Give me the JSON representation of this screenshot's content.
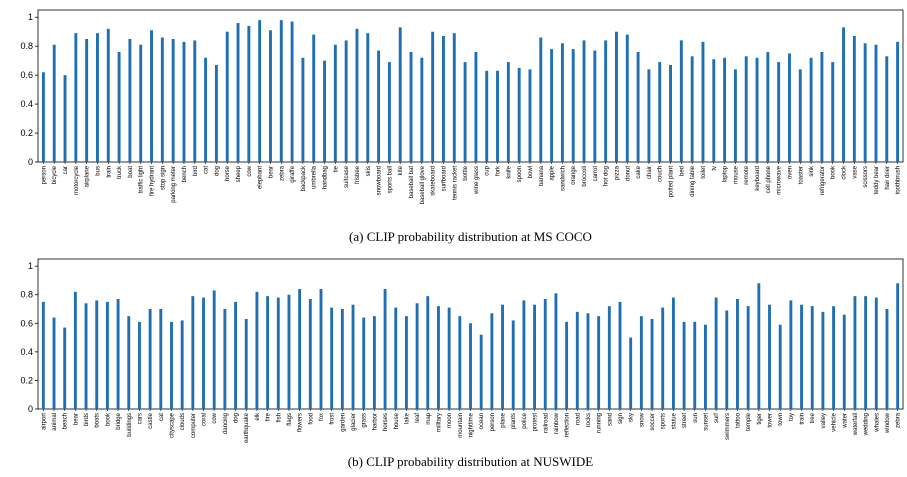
{
  "chart_data": [
    {
      "type": "bar",
      "caption": "(a) CLIP probability distribution at MS COCO",
      "ylim": [
        0,
        1.05
      ],
      "yticks": [
        "0",
        "0.2",
        "0.4",
        "0.6",
        "0.8",
        "1"
      ],
      "color": "#1f6fb2",
      "categories": [
        "person",
        "bicycle",
        "car",
        "motorcycle",
        "airplane",
        "bus",
        "train",
        "truck",
        "boat",
        "traffic light",
        "fire hydrant",
        "stop sign",
        "parking meter",
        "bench",
        "bird",
        "cat",
        "dog",
        "horse",
        "sheep",
        "cow",
        "elephant",
        "bear",
        "zebra",
        "giraffe",
        "backpack",
        "umbrella",
        "handbag",
        "tie",
        "suitcase",
        "frisbee",
        "skis",
        "snowboard",
        "sports ball",
        "kite",
        "baseball bat",
        "baseball glove",
        "skateboard",
        "surfboard",
        "tennis racket",
        "bottle",
        "wine glass",
        "cup",
        "fork",
        "knife",
        "spoon",
        "bowl",
        "banana",
        "apple",
        "sandwich",
        "orange",
        "broccoli",
        "carrot",
        "hot dog",
        "pizza",
        "donut",
        "cake",
        "chair",
        "couch",
        "potted plant",
        "bed",
        "dining table",
        "toilet",
        "tv",
        "laptop",
        "mouse",
        "remote",
        "keyboard",
        "cell phone",
        "microwave",
        "oven",
        "toaster",
        "sink",
        "refrigerator",
        "book",
        "clock",
        "vase",
        "scissors",
        "teddy bear",
        "hair drier",
        "toothbrush"
      ],
      "values": [
        0.62,
        0.81,
        0.6,
        0.89,
        0.85,
        0.89,
        0.92,
        0.76,
        0.85,
        0.81,
        0.91,
        0.86,
        0.85,
        0.83,
        0.84,
        0.72,
        0.67,
        0.9,
        0.96,
        0.94,
        0.98,
        0.91,
        0.98,
        0.97,
        0.72,
        0.88,
        0.7,
        0.81,
        0.84,
        0.92,
        0.89,
        0.77,
        0.69,
        0.93,
        0.76,
        0.72,
        0.9,
        0.87,
        0.89,
        0.69,
        0.76,
        0.63,
        0.63,
        0.69,
        0.65,
        0.64,
        0.86,
        0.78,
        0.82,
        0.78,
        0.84,
        0.77,
        0.84,
        0.9,
        0.88,
        0.76,
        0.64,
        0.69,
        0.67,
        0.84,
        0.73,
        0.83,
        0.71,
        0.72,
        0.64,
        0.73,
        0.72,
        0.76,
        0.69,
        0.75,
        0.64,
        0.72,
        0.76,
        0.69,
        0.93,
        0.87,
        0.82,
        0.81,
        0.73,
        0.83
      ]
    },
    {
      "type": "bar",
      "caption": "(b) CLIP probability distribution at NUSWIDE",
      "ylim": [
        0,
        1.05
      ],
      "yticks": [
        "0",
        "0.2",
        "0.4",
        "0.6",
        "0.8",
        "1"
      ],
      "color": "#1f6fb2",
      "categories": [
        "airport",
        "animal",
        "beach",
        "bear",
        "birds",
        "boats",
        "book",
        "bridge",
        "buildings",
        "cars",
        "castle",
        "cat",
        "cityscape",
        "clouds",
        "computer",
        "coral",
        "cow",
        "dancing",
        "dog",
        "earthquake",
        "elk",
        "fire",
        "fish",
        "flags",
        "flowers",
        "food",
        "fox",
        "frost",
        "garden",
        "glacier",
        "grass",
        "harbor",
        "horses",
        "house",
        "lake",
        "leaf",
        "map",
        "military",
        "moon",
        "mountain",
        "nighttime",
        "ocean",
        "person",
        "plane",
        "plants",
        "police",
        "protest",
        "railroad",
        "rainbow",
        "reflection",
        "road",
        "rocks",
        "running",
        "sand",
        "sign",
        "sky",
        "snow",
        "soccer",
        "sports",
        "statue",
        "street",
        "sun",
        "sunset",
        "surf",
        "swimmers",
        "tattoo",
        "temple",
        "tiger",
        "tower",
        "town",
        "toy",
        "train",
        "tree",
        "valley",
        "vehicle",
        "water",
        "waterfall",
        "wedding",
        "whales",
        "window",
        "zebra"
      ],
      "values": [
        0.75,
        0.64,
        0.57,
        0.82,
        0.74,
        0.76,
        0.75,
        0.77,
        0.65,
        0.61,
        0.7,
        0.7,
        0.61,
        0.62,
        0.79,
        0.78,
        0.83,
        0.7,
        0.75,
        0.63,
        0.82,
        0.79,
        0.78,
        0.8,
        0.84,
        0.77,
        0.84,
        0.71,
        0.7,
        0.73,
        0.64,
        0.65,
        0.84,
        0.71,
        0.65,
        0.74,
        0.79,
        0.72,
        0.71,
        0.65,
        0.6,
        0.52,
        0.67,
        0.73,
        0.62,
        0.76,
        0.73,
        0.77,
        0.81,
        0.61,
        0.68,
        0.67,
        0.65,
        0.72,
        0.75,
        0.5,
        0.65,
        0.63,
        0.71,
        0.78,
        0.61,
        0.61,
        0.59,
        0.78,
        0.69,
        0.77,
        0.72,
        0.88,
        0.73,
        0.59,
        0.76,
        0.73,
        0.72,
        0.68,
        0.72,
        0.66,
        0.79,
        0.79,
        0.78,
        0.7,
        0.88
      ]
    }
  ]
}
